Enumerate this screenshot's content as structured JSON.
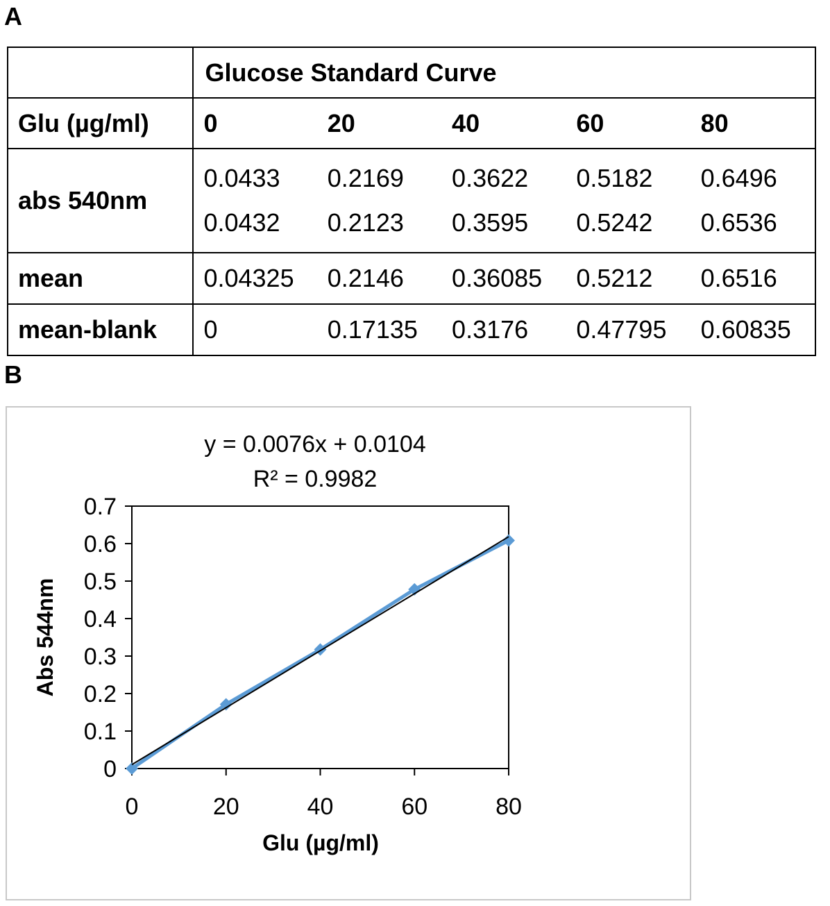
{
  "panels": {
    "a": "A",
    "b": "B"
  },
  "table": {
    "title": "Glucose Standard Curve",
    "header_label": "Glu (µg/ml)",
    "concentrations": [
      "0",
      "20",
      "40",
      "60",
      "80"
    ],
    "abs_label": "abs 540nm",
    "abs_rep1": [
      "0.0433",
      "0.2169",
      "0.3622",
      "0.5182",
      "0.6496"
    ],
    "abs_rep2": [
      "0.0432",
      "0.2123",
      "0.3595",
      "0.5242",
      "0.6536"
    ],
    "mean_label": "mean",
    "mean": [
      "0.04325",
      "0.2146",
      "0.36085",
      "0.5212",
      "0.6516"
    ],
    "blank_label": "mean-blank",
    "mean_blank": [
      "0",
      "0.17135",
      "0.3176",
      "0.47795",
      "0.60835"
    ]
  },
  "chart_data": {
    "type": "scatter",
    "x": [
      0,
      20,
      40,
      60,
      80
    ],
    "series": [
      {
        "values": [
          0,
          0.17135,
          0.3176,
          0.47795,
          0.60835
        ],
        "color": "#5b9bd5",
        "marker": "diamond"
      }
    ],
    "trendline": {
      "slope": 0.0076,
      "intercept": 0.0104,
      "color": "#000000"
    },
    "equation": "y = 0.0076x + 0.0104",
    "r_squared": "R² = 0.9982",
    "xlabel": "Glu (µg/ml)",
    "ylabel": "Abs 544nm",
    "xlim": [
      0,
      80
    ],
    "ylim": [
      0,
      0.7
    ],
    "xticks": [
      "0",
      "20",
      "40",
      "60",
      "80"
    ],
    "yticks": [
      "0",
      "0.1",
      "0.2",
      "0.3",
      "0.4",
      "0.5",
      "0.6",
      "0.7"
    ],
    "grid": false
  }
}
